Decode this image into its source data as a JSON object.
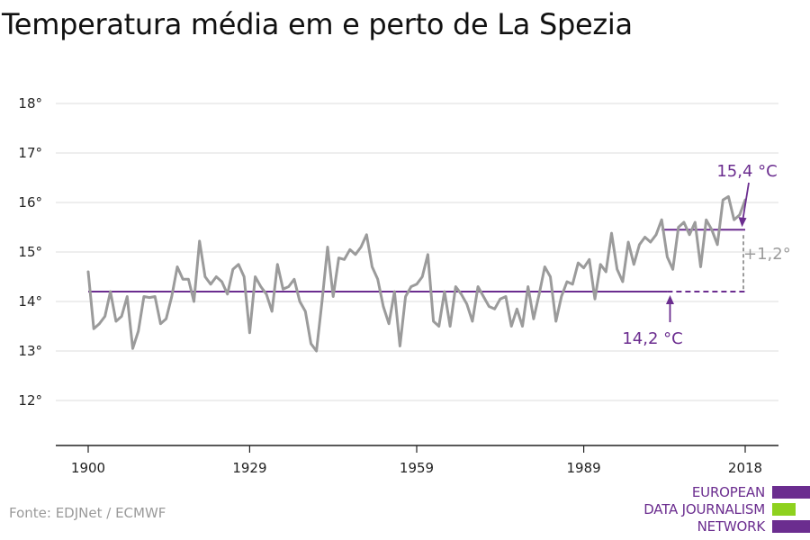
{
  "title": "Temperatura média em e perto de La Spezia",
  "source": "Fonte: EDJNet / ECMWF",
  "logo": {
    "lines": [
      "EUROPEAN",
      "DATA JOURNALISM",
      "NETWORK"
    ]
  },
  "colors": {
    "series": "#9b9b9b",
    "accent": "#6b2d8f",
    "grid": "#dddddd",
    "delta": "#9b9b9b",
    "logo_green": "#8ed11e"
  },
  "chart_data": {
    "type": "line",
    "title": "Temperatura média em e perto de La Spezia",
    "xlabel": "",
    "ylabel": "",
    "xlim": [
      1900,
      2018
    ],
    "ylim": [
      11,
      18.5
    ],
    "xticks": [
      1900,
      1929,
      1959,
      1989,
      2018
    ],
    "xtick_labels": [
      "1900",
      "1929",
      "1959",
      "1989",
      "2018"
    ],
    "yticks": [
      12,
      13,
      14,
      15,
      16,
      17,
      18
    ],
    "ytick_labels": [
      "12°",
      "13°",
      "14°",
      "15°",
      "16°",
      "17°",
      "18°"
    ],
    "grid": true,
    "x": [
      1900,
      1901,
      1902,
      1903,
      1904,
      1905,
      1906,
      1907,
      1908,
      1909,
      1910,
      1911,
      1912,
      1913,
      1914,
      1915,
      1916,
      1917,
      1918,
      1919,
      1920,
      1921,
      1922,
      1923,
      1924,
      1925,
      1926,
      1927,
      1928,
      1929,
      1930,
      1931,
      1932,
      1933,
      1934,
      1935,
      1936,
      1937,
      1938,
      1939,
      1940,
      1941,
      1942,
      1943,
      1944,
      1945,
      1946,
      1947,
      1948,
      1949,
      1950,
      1951,
      1952,
      1953,
      1954,
      1955,
      1956,
      1957,
      1958,
      1959,
      1960,
      1961,
      1962,
      1963,
      1964,
      1965,
      1966,
      1967,
      1968,
      1969,
      1970,
      1971,
      1972,
      1973,
      1974,
      1975,
      1976,
      1977,
      1978,
      1979,
      1980,
      1981,
      1982,
      1983,
      1984,
      1985,
      1986,
      1987,
      1988,
      1989,
      1990,
      1991,
      1992,
      1993,
      1994,
      1995,
      1996,
      1997,
      1998,
      1999,
      2000,
      2001,
      2002,
      2003,
      2004,
      2005,
      2006,
      2007,
      2008,
      2009,
      2010,
      2011,
      2012,
      2013,
      2014,
      2015,
      2016,
      2017,
      2018
    ],
    "series": [
      {
        "values": [
          14.6,
          13.45,
          13.55,
          13.7,
          14.2,
          13.6,
          13.7,
          14.1,
          13.05,
          13.4,
          14.1,
          14.08,
          14.1,
          13.55,
          13.65,
          14.1,
          14.7,
          14.45,
          14.45,
          14.0,
          15.22,
          14.5,
          14.35,
          14.5,
          14.4,
          14.15,
          14.65,
          14.75,
          14.5,
          13.37,
          14.5,
          14.3,
          14.15,
          13.8,
          14.75,
          14.25,
          14.3,
          14.45,
          14.0,
          13.8,
          13.15,
          13.0,
          14.0,
          15.1,
          14.1,
          14.88,
          14.85,
          15.05,
          14.95,
          15.1,
          15.35,
          14.7,
          14.45,
          13.9,
          13.55,
          14.2,
          13.1,
          14.1,
          14.3,
          14.35,
          14.5,
          14.95,
          13.6,
          13.5,
          14.2,
          13.5,
          14.3,
          14.15,
          13.95,
          13.6,
          14.3,
          14.1,
          13.9,
          13.85,
          14.05,
          14.1,
          13.5,
          13.85,
          13.5,
          14.3,
          13.65,
          14.15,
          14.7,
          14.5,
          13.6,
          14.1,
          14.4,
          14.35,
          14.78,
          14.68,
          14.85,
          14.05,
          14.75,
          14.6,
          15.38,
          14.65,
          14.4,
          15.2,
          14.75,
          15.15,
          15.3,
          15.2,
          15.35,
          15.65,
          14.9,
          14.65,
          15.5,
          15.6,
          15.35,
          15.6,
          14.7,
          15.65,
          15.45,
          15.15,
          16.05,
          16.12,
          15.65,
          15.75,
          16.05
        ]
      }
    ],
    "reference_lines": [
      {
        "label": "14,2 °C",
        "value": 14.2,
        "x_start": 1900,
        "x_end": 2004,
        "x_dashed_end": 2018
      },
      {
        "label": "15,4 °C",
        "value": 15.45,
        "x_start": 2003,
        "x_end": 2018
      }
    ],
    "delta_label": "+1,2°"
  }
}
